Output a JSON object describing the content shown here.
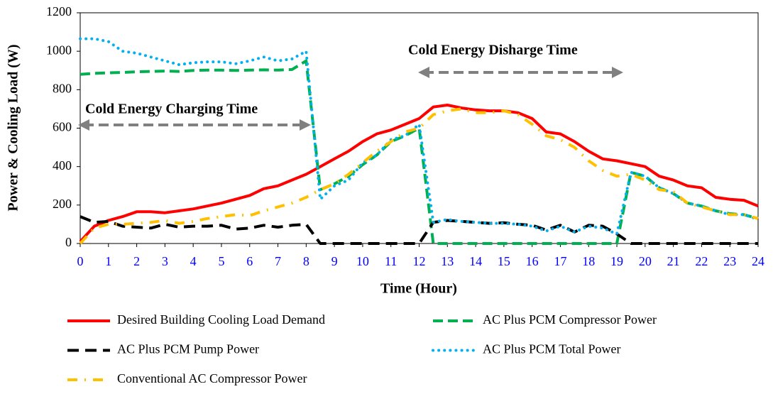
{
  "chart_data": {
    "type": "line",
    "xlabel": "Time (Hour)",
    "ylabel": "Power & Cooling Load (W)",
    "annotations": [
      "Cold Energy Charging Time",
      "Cold Energy Disharge Time"
    ],
    "x": [
      0,
      0.5,
      1,
      1.5,
      2,
      2.5,
      3,
      3.5,
      4,
      4.5,
      5,
      5.5,
      6,
      6.5,
      7,
      7.5,
      8,
      8.5,
      9,
      9.5,
      10,
      10.5,
      11,
      11.5,
      12,
      12.5,
      13,
      13.5,
      14,
      14.5,
      15,
      15.5,
      16,
      16.5,
      17,
      17.5,
      18,
      18.5,
      19,
      19.5,
      20,
      20.5,
      21,
      21.5,
      22,
      22.5,
      23,
      23.5,
      24
    ],
    "series": [
      {
        "name": "Desired Building Cooling Load Demand",
        "color": "#ff0000",
        "style": "solid",
        "values": [
          10,
          90,
          120,
          140,
          165,
          165,
          160,
          170,
          180,
          195,
          210,
          230,
          250,
          285,
          300,
          330,
          360,
          400,
          440,
          480,
          530,
          570,
          590,
          620,
          650,
          710,
          720,
          705,
          695,
          690,
          690,
          680,
          650,
          580,
          570,
          530,
          480,
          440,
          430,
          415,
          400,
          350,
          330,
          300,
          290,
          240,
          230,
          225,
          195
        ]
      },
      {
        "name": "AC Plus PCM Compressor Power",
        "color": "#00b050",
        "style": "dash",
        "values": [
          880,
          885,
          888,
          890,
          893,
          895,
          897,
          895,
          900,
          902,
          902,
          900,
          902,
          903,
          902,
          905,
          950,
          280,
          310,
          350,
          410,
          460,
          530,
          560,
          600,
          0,
          0,
          0,
          0,
          0,
          0,
          0,
          0,
          0,
          0,
          0,
          0,
          0,
          0,
          370,
          350,
          290,
          260,
          210,
          195,
          170,
          155,
          150,
          130
        ]
      },
      {
        "name": "AC Plus PCM Pump Power",
        "color": "#000000",
        "style": "longdash",
        "values": [
          140,
          110,
          115,
          90,
          85,
          80,
          100,
          85,
          90,
          90,
          95,
          75,
          80,
          95,
          85,
          95,
          100,
          0,
          0,
          0,
          0,
          0,
          0,
          0,
          0,
          110,
          120,
          115,
          110,
          105,
          108,
          100,
          95,
          70,
          95,
          60,
          95,
          90,
          50,
          0,
          0,
          0,
          0,
          0,
          0,
          0,
          0,
          0,
          0
        ]
      },
      {
        "name": "AC Plus PCM Total Power",
        "color": "#00b0f0",
        "style": "dot",
        "values": [
          1065,
          1065,
          1050,
          1000,
          990,
          970,
          950,
          930,
          940,
          945,
          945,
          935,
          950,
          970,
          950,
          960,
          1000,
          230,
          300,
          330,
          420,
          460,
          540,
          560,
          620,
          110,
          125,
          115,
          110,
          105,
          105,
          100,
          90,
          65,
          90,
          60,
          90,
          80,
          50,
          370,
          350,
          290,
          260,
          210,
          195,
          170,
          150,
          150,
          125
        ]
      },
      {
        "name": "Conventional AC Compressor Power",
        "color": "#ffc000",
        "style": "dashdot",
        "values": [
          0,
          80,
          100,
          100,
          105,
          110,
          120,
          105,
          115,
          130,
          140,
          150,
          145,
          170,
          190,
          210,
          240,
          280,
          310,
          360,
          420,
          480,
          530,
          580,
          600,
          670,
          690,
          700,
          680,
          680,
          690,
          670,
          620,
          560,
          540,
          500,
          430,
          380,
          350,
          360,
          330,
          280,
          270,
          210,
          190,
          170,
          150,
          150,
          130
        ]
      }
    ],
    "xlim": [
      0,
      24
    ],
    "xticks": [
      0,
      1,
      2,
      3,
      4,
      5,
      6,
      7,
      8,
      9,
      10,
      11,
      12,
      13,
      14,
      15,
      16,
      17,
      18,
      19,
      20,
      21,
      22,
      23,
      24
    ],
    "ylim": [
      0,
      1200
    ],
    "yticks": [
      0,
      200,
      400,
      600,
      800,
      1000,
      1200
    ],
    "grid": false
  }
}
